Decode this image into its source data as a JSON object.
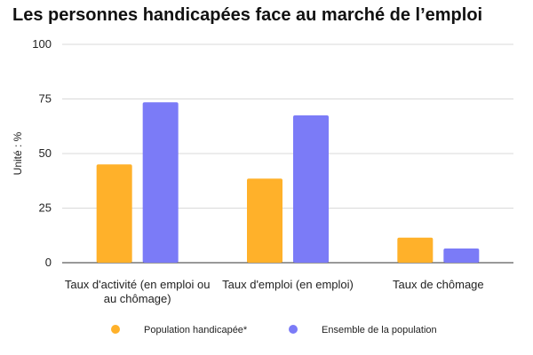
{
  "chart_data": {
    "type": "bar",
    "title": "Les personnes handicapées face au marché de l’emploi",
    "ylabel": "Unité : %",
    "xlabel": "",
    "ylim": [
      0,
      100
    ],
    "yticks": [
      0,
      25,
      50,
      75,
      100
    ],
    "grid": true,
    "legend_position": "bottom",
    "categories": [
      [
        "Taux d'activité (en emploi ou",
        "au chômage)"
      ],
      [
        "Taux d'emploi (en emploi)"
      ],
      [
        "Taux de chômage"
      ]
    ],
    "series": [
      {
        "name": "Population handicapée*",
        "color": "#ffb12a",
        "values": [
          45,
          38.5,
          11.5
        ]
      },
      {
        "name": "Ensemble de la population",
        "color": "#7b7bf7",
        "values": [
          73.5,
          67.5,
          6.5
        ]
      }
    ]
  }
}
